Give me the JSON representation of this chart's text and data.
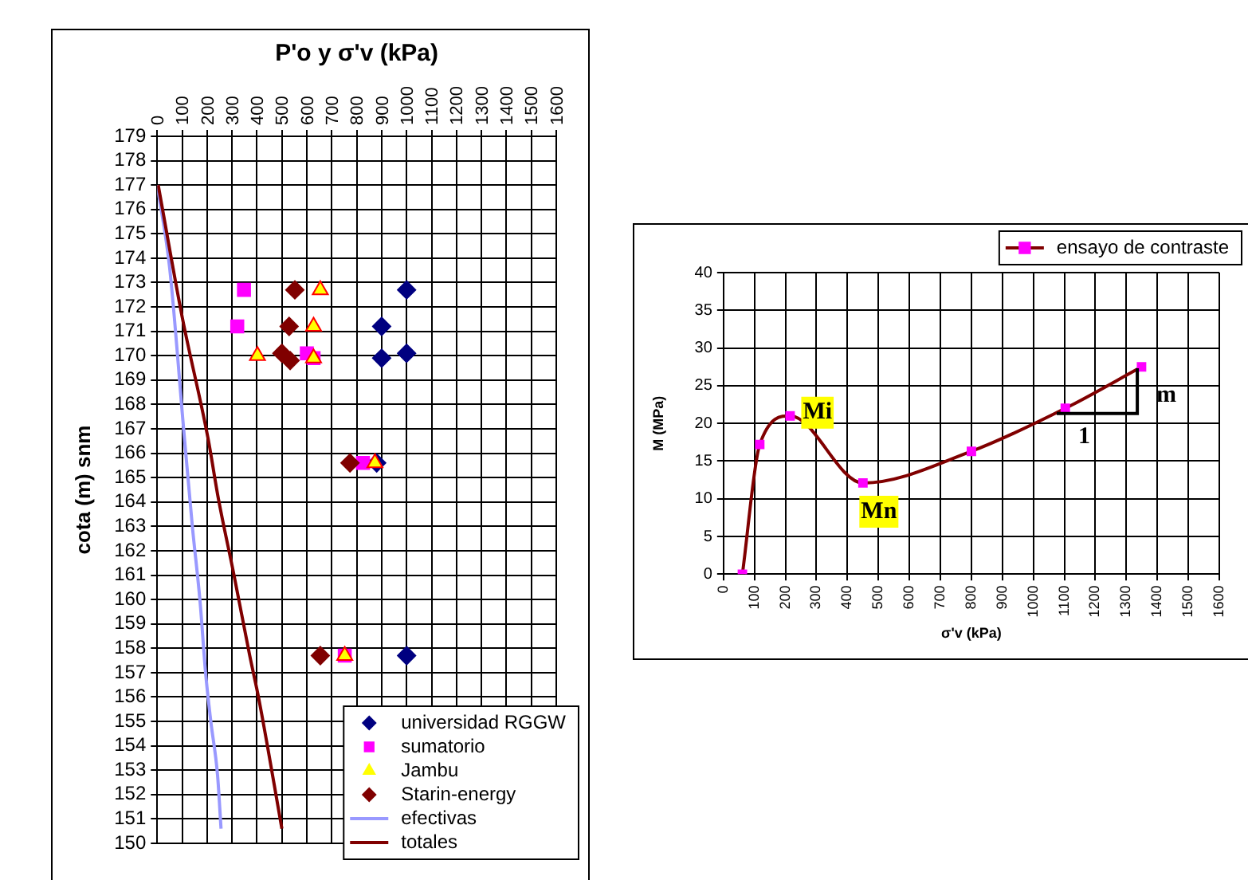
{
  "chart_data": [
    {
      "type": "scatter",
      "xlabel": "P'o y σ'v (kPa)",
      "ylabel": "cota (m) snm",
      "xlim": [
        0,
        1600
      ],
      "xticks": [
        0,
        100,
        200,
        300,
        400,
        500,
        600,
        700,
        800,
        900,
        1000,
        1100,
        1200,
        1300,
        1400,
        1500,
        1600
      ],
      "ylim": [
        150,
        179
      ],
      "yticks": [
        150,
        151,
        152,
        153,
        154,
        155,
        156,
        157,
        158,
        159,
        160,
        161,
        162,
        163,
        164,
        165,
        166,
        167,
        168,
        169,
        170,
        171,
        172,
        173,
        174,
        175,
        176,
        177,
        178,
        179
      ],
      "grid": true,
      "legend": "bottom right",
      "series": [
        {
          "name": "universidad RGGW",
          "color": "#000080",
          "marker": "diamond",
          "x": [
            1000,
            900,
            900,
            1000,
            880,
            1000
          ],
          "values": [
            172.7,
            171.2,
            169.9,
            170.1,
            165.6,
            157.7
          ]
        },
        {
          "name": "sumatorio",
          "color": "#ff00ff",
          "marker": "square",
          "x": [
            348,
            321,
            600,
            627,
            825,
            752
          ],
          "values": [
            172.7,
            171.2,
            170.1,
            169.9,
            165.6,
            157.7
          ]
        },
        {
          "name": "Jambu",
          "color": "#ffff00",
          "marker": "triangle",
          "x": [
            654,
            627,
            402,
            627,
            873,
            752
          ],
          "values": [
            172.7,
            171.2,
            170.0,
            169.9,
            165.6,
            157.7
          ]
        },
        {
          "name": "Starin-energy",
          "color": "#800000",
          "marker": "diamond",
          "x": [
            552,
            529,
            500,
            533,
            773,
            654
          ],
          "values": [
            172.7,
            171.2,
            170.1,
            169.8,
            165.6,
            157.7
          ]
        },
        {
          "name": "efectivas",
          "type": "line",
          "color": "#9999ff",
          "marker": "none",
          "x": [
            0,
            50,
            106,
            141,
            172,
            194,
            215,
            242,
            256
          ],
          "values": [
            177,
            173.6,
            167,
            163,
            159.9,
            157,
            155,
            152.8,
            150.6
          ]
        },
        {
          "name": "totales",
          "type": "line",
          "color": "#800000",
          "marker": "none",
          "x": [
            4,
            100,
            204,
            246,
            308,
            371,
            408,
            500
          ],
          "values": [
            177,
            171.6,
            166.6,
            164.1,
            161,
            157.7,
            155.9,
            150.6
          ]
        }
      ]
    },
    {
      "type": "line",
      "xlabel": "σ'v (kPa)",
      "ylabel": "M (MPa)",
      "xlim": [
        0,
        1600
      ],
      "xticks": [
        0,
        100,
        200,
        300,
        400,
        500,
        600,
        700,
        800,
        900,
        1000,
        1100,
        1200,
        1300,
        1400,
        1500,
        1600
      ],
      "ylim": [
        0,
        40
      ],
      "yticks": [
        0,
        5,
        10,
        15,
        20,
        25,
        30,
        35,
        40
      ],
      "grid": true,
      "legend": "top right",
      "series": [
        {
          "name": "ensayo de contraste",
          "color": "#800000",
          "marker": "square",
          "colors": [
            "#ff00ff",
            "#ff00ff",
            "#ff00ff",
            "#ff00ff",
            "#ff00ff",
            "#ff00ff",
            "#ff00ff"
          ],
          "x": [
            61,
            117,
            215,
            450,
            800,
            1103,
            1349
          ],
          "values": [
            0,
            17.2,
            21,
            12.1,
            16.3,
            22,
            27.5
          ]
        }
      ],
      "annotations": [
        {
          "text": "Mi",
          "x": 215,
          "y": 21
        },
        {
          "text": "Mn",
          "x": 450,
          "y": 12.1
        },
        {
          "text": "m",
          "x": 1349,
          "y": 27.5
        },
        {
          "text": "1",
          "x": 1103,
          "y": 22
        }
      ]
    }
  ]
}
